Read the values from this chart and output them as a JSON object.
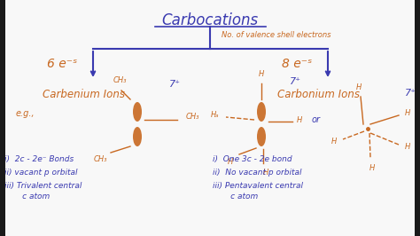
{
  "bg_color": "#f8f8f8",
  "title": "Carbocations",
  "title_color": "#3a3ab0",
  "branch_label": "No. of valence shell electrons",
  "branch_label_color": "#c86820",
  "left_electrons": "6 e⁻ˢ",
  "right_electrons": "8 e⁻ˢ",
  "electrons_color": "#c86820",
  "left_heading": "Carbenium Ions",
  "right_heading": "Carbonium Ions",
  "heading_color": "#c86820",
  "left_eg": "e.g.,",
  "left_charge": "7⁺",
  "right_charge1": "7⁺",
  "right_charge2": "7⁺",
  "left_points": [
    "i)  2c - 2e⁻ Bonds",
    "ii) vacant p orbital",
    "iii) Trivalent central",
    "       c atom"
  ],
  "right_points": [
    "i)  One 3c - 2e bond",
    "ii)  No vacant p orbital",
    "iii) Pentavalent central",
    "       c atom"
  ],
  "blue_color": "#3a3ab0",
  "orange_color": "#c86820",
  "line_color": "#3a3ab0",
  "border_color": "#1a1a80"
}
